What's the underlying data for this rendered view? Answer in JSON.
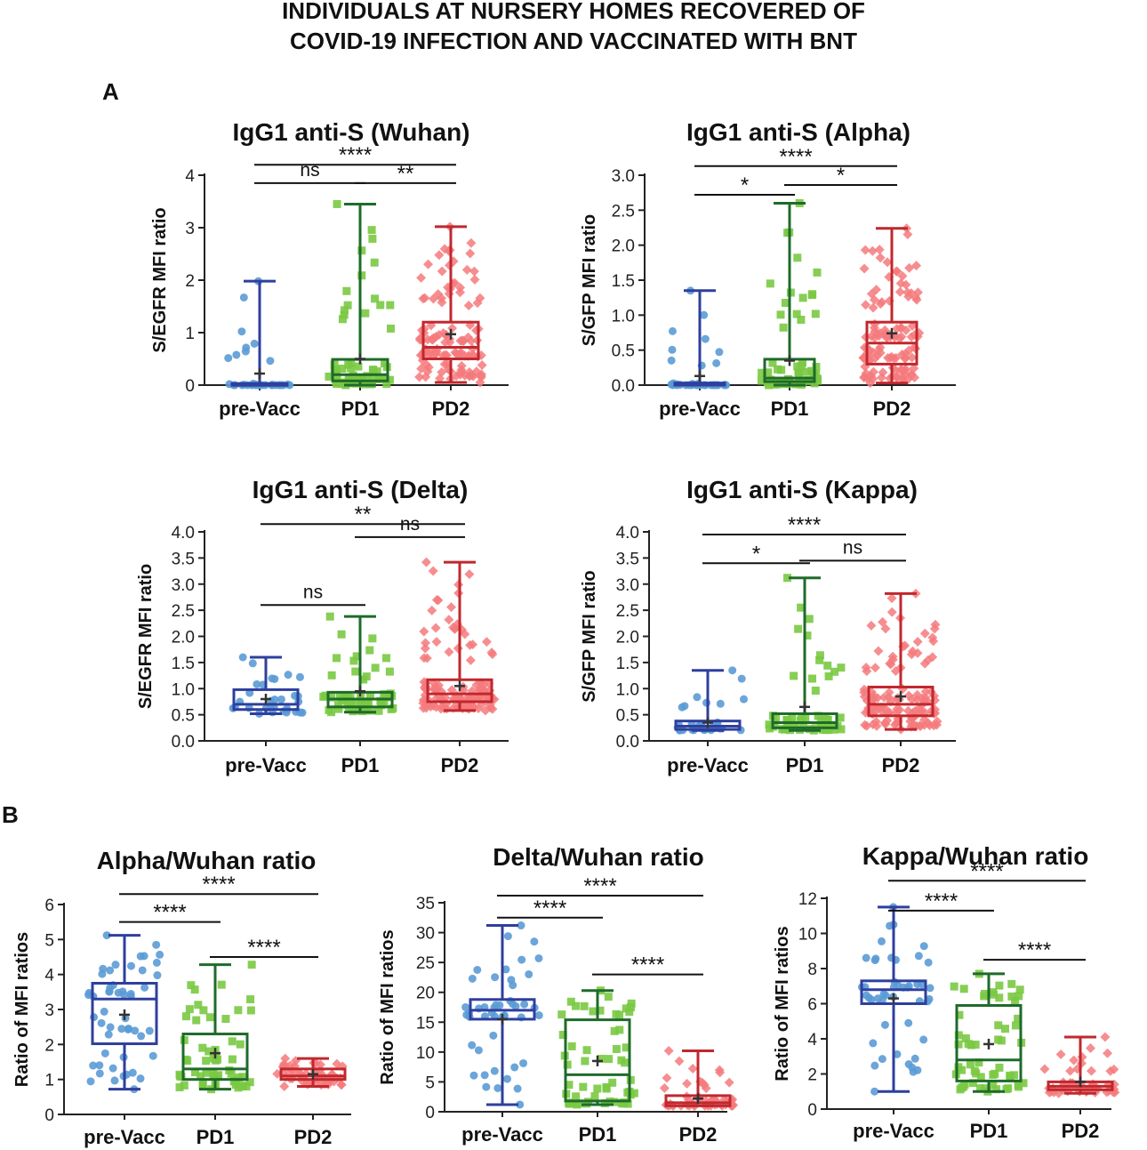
{
  "figure": {
    "title_line1": "INDIVIDUALS AT NURSERY HOMES RECOVERED OF",
    "title_line2": "COVID-19 INFECTION AND VACCINATED WITH BNT",
    "panel_a_label": "A",
    "panel_b_label": "B"
  },
  "colors": {
    "pre_vacc_box": "#2e3f9e",
    "pre_vacc_points": "#5b9bd5",
    "pd1_box": "#1e6b2a",
    "pd1_points": "#7ac943",
    "pd2_box": "#c0282e",
    "pd2_points": "#f47a7d",
    "axis": "#222222"
  },
  "chart_data": [
    {
      "type": "box",
      "id": "wuhan",
      "title": "IgG1 anti-S (Wuhan)",
      "xlabel": "",
      "ylabel": "S/EGFR MFI ratio",
      "ylim": [
        0,
        4
      ],
      "yticks": [
        0,
        1,
        2,
        3,
        4
      ],
      "ytick_labels": [
        "0",
        "1",
        "2",
        "3",
        "4"
      ],
      "categories": [
        "pre-Vacc",
        "PD1",
        "PD2"
      ],
      "series": [
        {
          "name": "pre-Vacc",
          "min": 0.0,
          "q1": 0.0,
          "median": 0.0,
          "q3": 0.03,
          "max": 1.98,
          "mean": 0.22,
          "n": 34
        },
        {
          "name": "PD1",
          "min": 0.0,
          "q1": 0.08,
          "median": 0.2,
          "q3": 0.49,
          "max": 3.45,
          "mean": 0.5,
          "n": 60
        },
        {
          "name": "PD2",
          "min": 0.05,
          "q1": 0.5,
          "median": 0.72,
          "q3": 1.2,
          "max": 3.02,
          "mean": 0.97,
          "n": 120
        }
      ],
      "comparisons": [
        {
          "from": 0,
          "to": 2,
          "y": 4.2,
          "label": "****"
        },
        {
          "from": 0,
          "to": 1,
          "y": 3.85,
          "label": "ns"
        },
        {
          "from": 1,
          "to": 2,
          "y": 3.85,
          "label": "**"
        }
      ]
    },
    {
      "type": "box",
      "id": "alpha",
      "title": "IgG1 anti-S (Alpha)",
      "xlabel": "",
      "ylabel": "S/GFP MFI ratio",
      "ylim": [
        0,
        3
      ],
      "yticks": [
        0,
        0.5,
        1,
        1.5,
        2,
        2.5,
        3
      ],
      "ytick_labels": [
        "0.0",
        "0.5",
        "1.0",
        "1.5",
        "2.0",
        "2.5",
        "3.0"
      ],
      "categories": [
        "pre-Vacc",
        "PD1",
        "PD2"
      ],
      "series": [
        {
          "name": "pre-Vacc",
          "min": 0.0,
          "q1": 0.0,
          "median": 0.0,
          "q3": 0.03,
          "max": 1.35,
          "mean": 0.13,
          "n": 34
        },
        {
          "name": "PD1",
          "min": 0.0,
          "q1": 0.05,
          "median": 0.1,
          "q3": 0.37,
          "max": 2.6,
          "mean": 0.35,
          "n": 60
        },
        {
          "name": "PD2",
          "min": 0.03,
          "q1": 0.3,
          "median": 0.6,
          "q3": 0.9,
          "max": 2.24,
          "mean": 0.74,
          "n": 120
        }
      ],
      "comparisons": [
        {
          "from": 0,
          "to": 2,
          "y": 3.13,
          "label": "****"
        },
        {
          "from": 0,
          "to": 1,
          "y": 2.72,
          "label": "*"
        },
        {
          "from": 1,
          "to": 2,
          "y": 2.86,
          "label": "*"
        }
      ]
    },
    {
      "type": "box",
      "id": "delta",
      "title": "IgG1 anti-S (Delta)",
      "xlabel": "",
      "ylabel": "S/EGFR MFI ratio",
      "ylim": [
        0,
        4
      ],
      "yticks": [
        0,
        0.5,
        1,
        1.5,
        2,
        2.5,
        3,
        3.5,
        4
      ],
      "ytick_labels": [
        "0.0",
        "0.5",
        "1.0",
        "1.5",
        "2.0",
        "2.5",
        "3.0",
        "3.5",
        "4.0"
      ],
      "categories": [
        "pre-Vacc",
        "PD1",
        "PD2"
      ],
      "series": [
        {
          "name": "pre-Vacc",
          "min": 0.52,
          "q1": 0.6,
          "median": 0.7,
          "q3": 0.98,
          "max": 1.6,
          "mean": 0.8,
          "n": 30
        },
        {
          "name": "PD1",
          "min": 0.55,
          "q1": 0.65,
          "median": 0.8,
          "q3": 0.93,
          "max": 2.38,
          "mean": 0.95,
          "n": 55
        },
        {
          "name": "PD2",
          "min": 0.58,
          "q1": 0.75,
          "median": 0.9,
          "q3": 1.17,
          "max": 3.42,
          "mean": 1.05,
          "n": 120
        }
      ],
      "comparisons": [
        {
          "from": 0,
          "to": 2,
          "y": 4.15,
          "label": "**"
        },
        {
          "from": 1,
          "to": 2,
          "y": 3.9,
          "label": "ns"
        },
        {
          "from": 0,
          "to": 1,
          "y": 2.6,
          "label": "ns"
        }
      ]
    },
    {
      "type": "box",
      "id": "kappa",
      "title": "IgG1 anti-S (Kappa)",
      "xlabel": "",
      "ylabel": "S/GFP MFI ratio",
      "ylim": [
        0,
        4
      ],
      "yticks": [
        0,
        0.5,
        1,
        1.5,
        2,
        2.5,
        3,
        3.5,
        4
      ],
      "ytick_labels": [
        "0.0",
        "0.5",
        "1.0",
        "1.5",
        "2.0",
        "2.5",
        "3.0",
        "3.5",
        "4.0"
      ],
      "categories": [
        "pre-Vacc",
        "PD1",
        "PD2"
      ],
      "series": [
        {
          "name": "pre-Vacc",
          "min": 0.2,
          "q1": 0.22,
          "median": 0.28,
          "q3": 0.38,
          "max": 1.35,
          "mean": 0.35,
          "n": 30
        },
        {
          "name": "PD1",
          "min": 0.2,
          "q1": 0.25,
          "median": 0.35,
          "q3": 0.52,
          "max": 3.12,
          "mean": 0.65,
          "n": 55
        },
        {
          "name": "PD2",
          "min": 0.22,
          "q1": 0.48,
          "median": 0.7,
          "q3": 1.03,
          "max": 2.82,
          "mean": 0.85,
          "n": 120
        }
      ],
      "comparisons": [
        {
          "from": 0,
          "to": 2,
          "y": 3.95,
          "label": "****"
        },
        {
          "from": 0,
          "to": 1,
          "y": 3.4,
          "label": "*"
        },
        {
          "from": 1,
          "to": 2,
          "y": 3.45,
          "label": "ns"
        }
      ]
    },
    {
      "type": "box",
      "id": "alpha-wuhan",
      "title": "Alpha/Wuhan ratio",
      "xlabel": "",
      "ylabel": "Ratio of MFI ratios",
      "ylim": [
        0,
        6
      ],
      "yticks": [
        0,
        1,
        2,
        3,
        4,
        5,
        6
      ],
      "ytick_labels": [
        "0",
        "1",
        "2",
        "3",
        "4",
        "5",
        "6"
      ],
      "categories": [
        "pre-Vacc",
        "PD1",
        "PD2"
      ],
      "series": [
        {
          "name": "pre-Vacc",
          "min": 0.72,
          "q1": 2.02,
          "median": 3.3,
          "q3": 3.75,
          "max": 5.12,
          "mean": 2.85,
          "n": 50
        },
        {
          "name": "PD1",
          "min": 0.72,
          "q1": 1.0,
          "median": 1.3,
          "q3": 2.3,
          "max": 4.28,
          "mean": 1.75,
          "n": 55
        },
        {
          "name": "PD2",
          "min": 0.8,
          "q1": 1.0,
          "median": 1.1,
          "q3": 1.3,
          "max": 1.6,
          "mean": 1.15,
          "n": 50
        }
      ],
      "comparisons": [
        {
          "from": 0,
          "to": 2,
          "y": 6.3,
          "label": "****"
        },
        {
          "from": 0,
          "to": 1,
          "y": 5.5,
          "label": "****"
        },
        {
          "from": 1,
          "to": 2,
          "y": 4.5,
          "label": "****"
        }
      ]
    },
    {
      "type": "box",
      "id": "delta-wuhan",
      "title": "Delta/Wuhan ratio",
      "xlabel": "",
      "ylabel": "Ratio of MFI ratios",
      "ylim": [
        0,
        35
      ],
      "yticks": [
        0,
        5,
        10,
        15,
        20,
        25,
        30,
        35
      ],
      "ytick_labels": [
        "0",
        "5",
        "10",
        "15",
        "20",
        "25",
        "30",
        "35"
      ],
      "categories": [
        "pre-Vacc",
        "PD1",
        "PD2"
      ],
      "series": [
        {
          "name": "pre-Vacc",
          "min": 1.2,
          "q1": 15.5,
          "median": 17.0,
          "q3": 18.8,
          "max": 31.2,
          "mean": 15.5,
          "n": 45
        },
        {
          "name": "PD1",
          "min": 1.2,
          "q1": 1.8,
          "median": 6.2,
          "q3": 15.4,
          "max": 20.3,
          "mean": 8.5,
          "n": 55
        },
        {
          "name": "PD2",
          "min": 1.0,
          "q1": 1.0,
          "median": 1.5,
          "q3": 2.7,
          "max": 10.2,
          "mean": 2.2,
          "n": 50
        }
      ],
      "comparisons": [
        {
          "from": 0,
          "to": 2,
          "y": 36.2,
          "label": "****"
        },
        {
          "from": 0,
          "to": 1,
          "y": 32.5,
          "label": "****"
        },
        {
          "from": 1,
          "to": 2,
          "y": 23.0,
          "label": "****"
        }
      ]
    },
    {
      "type": "box",
      "id": "kappa-wuhan",
      "title": "Kappa/Wuhan ratio",
      "xlabel": "",
      "ylabel": "Ratio of MFI ratios",
      "ylim": [
        0,
        12
      ],
      "yticks": [
        0,
        2,
        4,
        6,
        8,
        10,
        12
      ],
      "ytick_labels": [
        "0",
        "2",
        "4",
        "6",
        "8",
        "10",
        "12"
      ],
      "categories": [
        "pre-Vacc",
        "PD1",
        "PD2"
      ],
      "series": [
        {
          "name": "pre-Vacc",
          "min": 1.0,
          "q1": 6.0,
          "median": 6.8,
          "q3": 7.3,
          "max": 11.5,
          "mean": 6.3,
          "n": 45
        },
        {
          "name": "PD1",
          "min": 1.0,
          "q1": 1.6,
          "median": 2.8,
          "q3": 5.9,
          "max": 7.7,
          "mean": 3.7,
          "n": 55
        },
        {
          "name": "PD2",
          "min": 0.9,
          "q1": 1.1,
          "median": 1.3,
          "q3": 1.55,
          "max": 4.1,
          "mean": 1.55,
          "n": 50
        }
      ],
      "comparisons": [
        {
          "from": 0,
          "to": 2,
          "y": 13.0,
          "label": "****"
        },
        {
          "from": 0,
          "to": 1,
          "y": 11.3,
          "label": "****"
        },
        {
          "from": 1,
          "to": 2,
          "y": 8.5,
          "label": "****"
        }
      ]
    }
  ]
}
